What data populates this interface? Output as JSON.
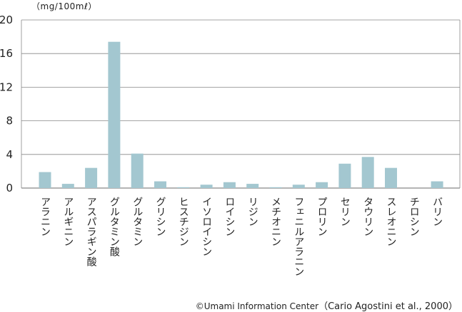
{
  "chart_data": {
    "type": "bar",
    "unit_label": "（mg/100mℓ）",
    "categories": [
      "アラニン",
      "アルギニン",
      "アスパラギン酸",
      "グルタミン酸",
      "グルタミン",
      "グリシン",
      "ヒスチジン",
      "イソロイシン",
      "ロイシン",
      "リジン",
      "メチオニン",
      "フェニルアラニン",
      "プロリン",
      "セリン",
      "タウリン",
      "スレオニン",
      "チロシン",
      "バリン"
    ],
    "values": [
      1.9,
      0.5,
      2.4,
      17.4,
      4.1,
      0.8,
      0.1,
      0.4,
      0.7,
      0.5,
      0.1,
      0.4,
      0.7,
      2.9,
      3.7,
      2.4,
      0.0,
      0.8
    ],
    "yticks": [
      "0",
      "4",
      "8",
      "12",
      "16",
      "20"
    ],
    "ylim": [
      0,
      20
    ],
    "grid": true,
    "bar_color": "#a3c7d0",
    "grid_color": "#888888"
  },
  "footer": {
    "credit": "©Umami Information Center",
    "source": "（Cario Agostini et al., 2000）"
  }
}
